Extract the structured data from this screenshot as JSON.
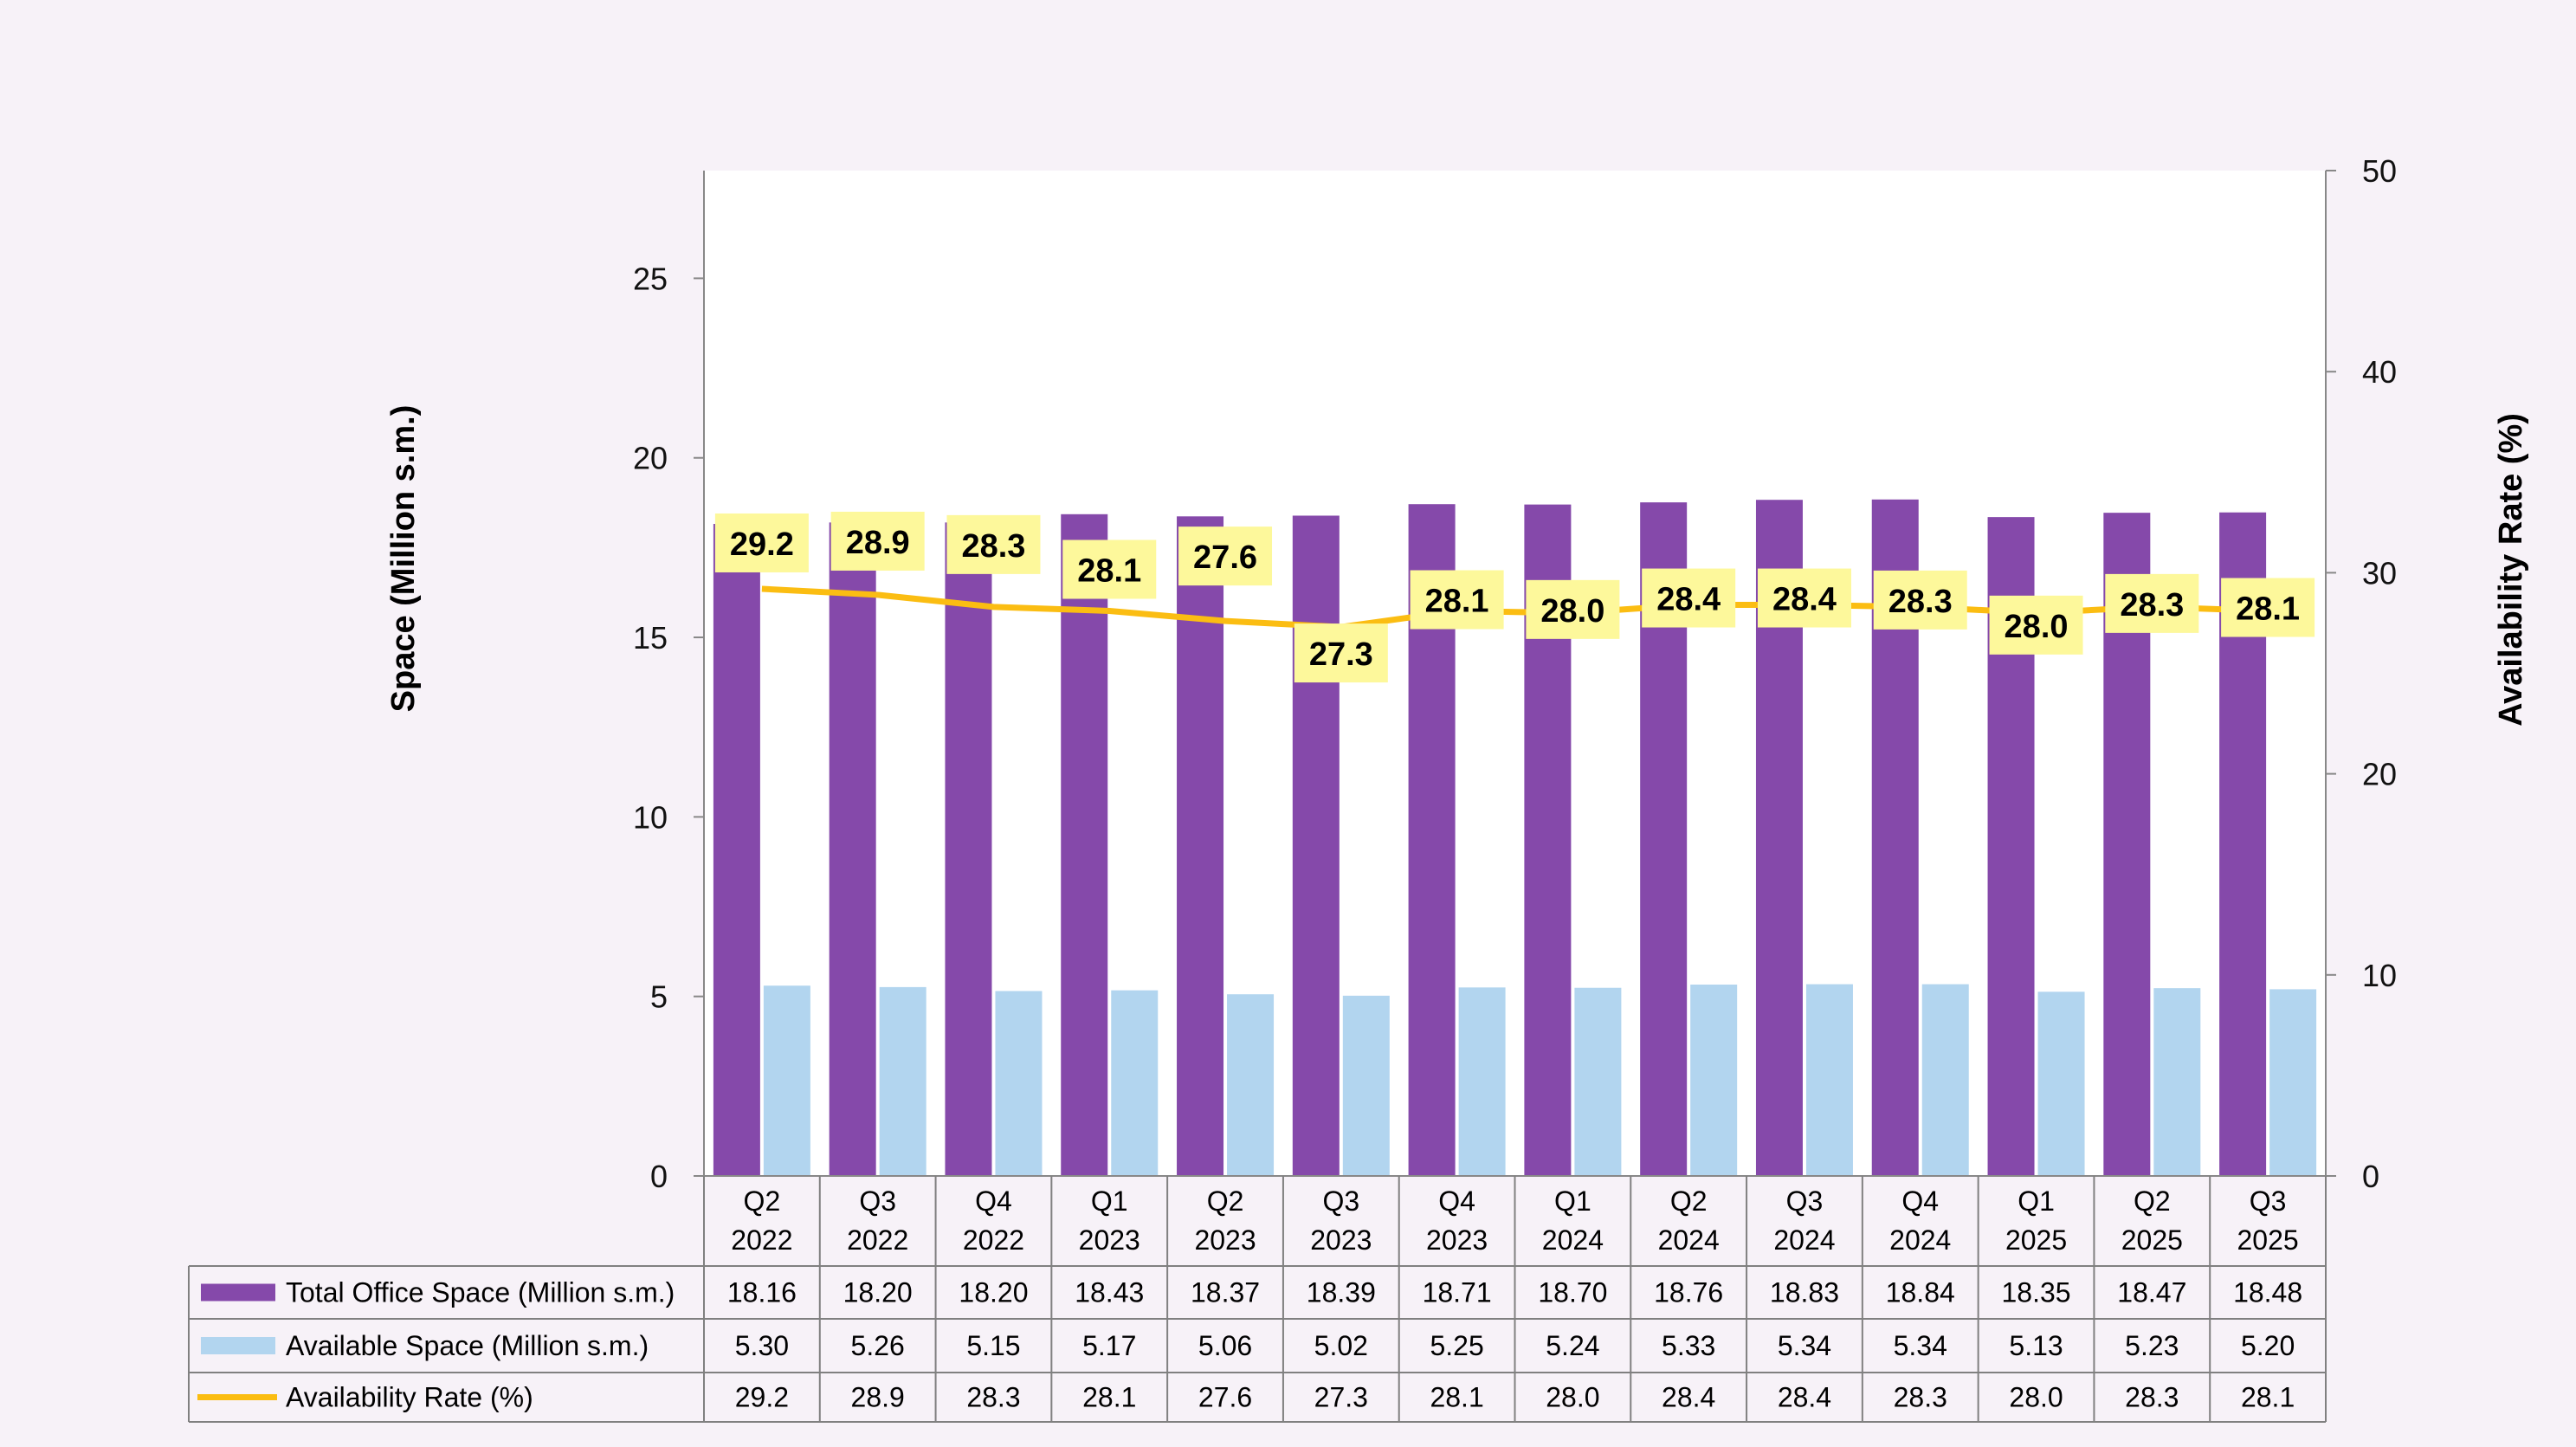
{
  "chart_data": {
    "type": "bar",
    "categories": [
      [
        "Q2",
        "2022"
      ],
      [
        "Q3",
        "2022"
      ],
      [
        "Q4",
        "2022"
      ],
      [
        "Q1",
        "2023"
      ],
      [
        "Q2",
        "2023"
      ],
      [
        "Q3",
        "2023"
      ],
      [
        "Q4",
        "2023"
      ],
      [
        "Q1",
        "2024"
      ],
      [
        "Q2",
        "2024"
      ],
      [
        "Q3",
        "2024"
      ],
      [
        "Q4",
        "2024"
      ],
      [
        "Q1",
        "2025"
      ],
      [
        "Q2",
        "2025"
      ],
      [
        "Q3",
        "2025"
      ]
    ],
    "series": [
      {
        "name": "Total Office Space (Million s.m.)",
        "kind": "bar",
        "axis": "left",
        "color": "#8549aa",
        "values": [
          18.16,
          18.2,
          18.2,
          18.43,
          18.37,
          18.39,
          18.71,
          18.7,
          18.76,
          18.83,
          18.84,
          18.35,
          18.47,
          18.48
        ],
        "table_values": [
          "18.16",
          "18.20",
          "18.20",
          "18.43",
          "18.37",
          "18.39",
          "18.71",
          "18.70",
          "18.76",
          "18.83",
          "18.84",
          "18.35",
          "18.47",
          "18.48"
        ]
      },
      {
        "name": "Available Space (Million s.m.)",
        "kind": "bar",
        "axis": "left",
        "color": "#b2d5ef",
        "values": [
          5.3,
          5.26,
          5.15,
          5.17,
          5.06,
          5.02,
          5.25,
          5.24,
          5.33,
          5.34,
          5.34,
          5.13,
          5.23,
          5.2
        ],
        "table_values": [
          "5.30",
          "5.26",
          "5.15",
          "5.17",
          "5.06",
          "5.02",
          "5.25",
          "5.24",
          "5.33",
          "5.34",
          "5.34",
          "5.13",
          "5.23",
          "5.20"
        ]
      },
      {
        "name": "Availability Rate (%)",
        "kind": "line",
        "axis": "right",
        "color": "#fbbd12",
        "values": [
          29.2,
          28.9,
          28.3,
          28.1,
          27.6,
          27.3,
          28.1,
          28.0,
          28.4,
          28.4,
          28.3,
          28.0,
          28.3,
          28.1
        ],
        "table_values": [
          "29.2",
          "28.9",
          "28.3",
          "28.1",
          "27.6",
          "27.3",
          "28.1",
          "28.0",
          "28.4",
          "28.4",
          "28.3",
          "28.0",
          "28.3",
          "28.1"
        ]
      }
    ],
    "data_labels": [
      "29.2",
      "28.9",
      "28.3",
      "28.1",
      "27.6",
      "27.3",
      "28.1",
      "28.0",
      "28.4",
      "28.4",
      "28.3",
      "28.0",
      "28.3",
      "28.1"
    ],
    "data_label_bg": "#fdf89b",
    "ylabel": "Space (Million s.m.)",
    "y2label": "Availability Rate (%)",
    "ylim": [
      0,
      28
    ],
    "yticks": [
      "0",
      "5",
      "10",
      "15",
      "20",
      "25"
    ],
    "ytick_values": [
      0,
      5,
      10,
      15,
      20,
      25
    ],
    "y2lim": [
      0,
      50
    ],
    "y2ticks": [
      "0",
      "10",
      "20",
      "30",
      "40",
      "50"
    ],
    "y2tick_values": [
      0,
      10,
      20,
      30,
      40,
      50
    ],
    "legend": "data-table"
  }
}
